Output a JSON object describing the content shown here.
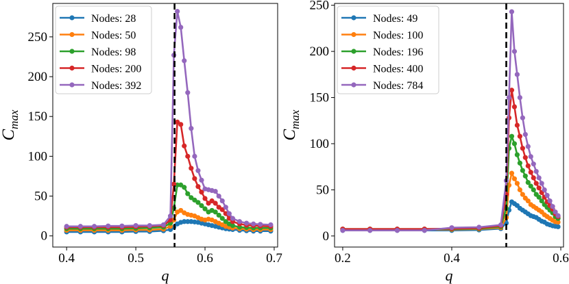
{
  "chart_data": [
    {
      "type": "line",
      "xlabel": "q",
      "ylabel_main": "C",
      "ylabel_sub": "max",
      "xlim": [
        0.38,
        0.705
      ],
      "ylim": [
        -14,
        292
      ],
      "xticks": [
        0.4,
        0.5,
        0.6,
        0.7
      ],
      "xtick_labels": [
        "0.4",
        "0.5",
        "0.6",
        "0.7"
      ],
      "yticks": [
        0,
        50,
        100,
        150,
        200,
        250
      ],
      "ytick_labels": [
        "0",
        "50",
        "100",
        "150",
        "200",
        "250"
      ],
      "critical_q": 0.556,
      "legend_position": "top-left",
      "grid": false,
      "series": [
        {
          "name": "Nodes: 28",
          "color": "#1f77b4",
          "x": [
            0.4,
            0.42,
            0.44,
            0.46,
            0.48,
            0.5,
            0.52,
            0.54,
            0.55,
            0.555,
            0.56,
            0.565,
            0.57,
            0.575,
            0.58,
            0.585,
            0.59,
            0.595,
            0.6,
            0.605,
            0.61,
            0.615,
            0.62,
            0.625,
            0.63,
            0.635,
            0.64,
            0.65,
            0.66,
            0.67,
            0.68,
            0.695
          ],
          "y": [
            5,
            5,
            5,
            5,
            5,
            5.5,
            5.5,
            6.5,
            8,
            11,
            15,
            17,
            18,
            18,
            18,
            17.5,
            17,
            16,
            15,
            14,
            13,
            12,
            11,
            10,
            9,
            8.5,
            8,
            7,
            6.5,
            6,
            6,
            6
          ]
        },
        {
          "name": "Nodes: 50",
          "color": "#ff7f0e",
          "x": [
            0.4,
            0.42,
            0.44,
            0.46,
            0.48,
            0.5,
            0.52,
            0.54,
            0.55,
            0.555,
            0.56,
            0.565,
            0.57,
            0.575,
            0.58,
            0.585,
            0.59,
            0.595,
            0.6,
            0.605,
            0.61,
            0.615,
            0.62,
            0.625,
            0.63,
            0.635,
            0.64,
            0.65,
            0.66,
            0.67,
            0.68,
            0.695
          ],
          "y": [
            7,
            7,
            7,
            7,
            7,
            7.5,
            7.5,
            8.5,
            12,
            20,
            30,
            32,
            29,
            27,
            26,
            25,
            23,
            21,
            20,
            21,
            20,
            18,
            16,
            14,
            12,
            11,
            10,
            9,
            8.5,
            8,
            8,
            8
          ]
        },
        {
          "name": "Nodes: 98",
          "color": "#2ca02c",
          "x": [
            0.4,
            0.42,
            0.44,
            0.46,
            0.48,
            0.5,
            0.52,
            0.54,
            0.55,
            0.555,
            0.56,
            0.565,
            0.57,
            0.575,
            0.58,
            0.585,
            0.59,
            0.595,
            0.6,
            0.605,
            0.61,
            0.615,
            0.62,
            0.625,
            0.63,
            0.635,
            0.64,
            0.65,
            0.66,
            0.67,
            0.68,
            0.695
          ],
          "y": [
            9,
            9,
            9,
            9,
            9,
            9.5,
            10,
            11,
            16,
            35,
            64,
            64,
            61,
            53,
            48,
            45,
            42,
            38,
            34,
            30,
            32,
            30,
            26,
            22,
            18,
            15,
            13,
            11,
            10.5,
            10,
            10,
            10
          ]
        },
        {
          "name": "Nodes: 200",
          "color": "#d62728",
          "x": [
            0.4,
            0.42,
            0.44,
            0.46,
            0.48,
            0.5,
            0.52,
            0.54,
            0.55,
            0.555,
            0.56,
            0.565,
            0.57,
            0.575,
            0.58,
            0.585,
            0.59,
            0.595,
            0.6,
            0.605,
            0.61,
            0.615,
            0.62,
            0.625,
            0.63,
            0.635,
            0.64,
            0.65,
            0.66,
            0.67,
            0.68,
            0.695
          ],
          "y": [
            11,
            11,
            11,
            11,
            11,
            11.5,
            12,
            13,
            20,
            65,
            143,
            140,
            113,
            100,
            85,
            72,
            62,
            55,
            47,
            41,
            44,
            41,
            36,
            33,
            28,
            22,
            18,
            15,
            13.5,
            13,
            12.5,
            12
          ]
        },
        {
          "name": "Nodes: 392",
          "color": "#9467bd",
          "x": [
            0.4,
            0.42,
            0.44,
            0.46,
            0.48,
            0.5,
            0.52,
            0.54,
            0.55,
            0.555,
            0.56,
            0.565,
            0.57,
            0.575,
            0.58,
            0.585,
            0.59,
            0.595,
            0.6,
            0.605,
            0.61,
            0.615,
            0.62,
            0.625,
            0.63,
            0.635,
            0.64,
            0.65,
            0.66,
            0.67,
            0.68,
            0.695
          ],
          "y": [
            12,
            12,
            12,
            12.5,
            12.5,
            13,
            13,
            14,
            25,
            227,
            282,
            262,
            220,
            180,
            135,
            100,
            82,
            70,
            59,
            58,
            57,
            56,
            50,
            44,
            36,
            28,
            22,
            18,
            16,
            15,
            14.5,
            14
          ]
        }
      ]
    },
    {
      "type": "line",
      "xlabel": "q",
      "ylabel_main": "C",
      "ylabel_sub": "max",
      "xlim": [
        0.185,
        0.605
      ],
      "ylim": [
        -12,
        252
      ],
      "xticks": [
        0.2,
        0.4,
        0.6
      ],
      "xtick_labels": [
        "0.2",
        "0.4",
        "0.6"
      ],
      "yticks": [
        0,
        50,
        100,
        150,
        200,
        250
      ],
      "ytick_labels": [
        "0",
        "50",
        "100",
        "150",
        "200",
        "250"
      ],
      "critical_q": 0.5,
      "legend_position": "top-left",
      "grid": false,
      "series": [
        {
          "name": "Nodes: 49",
          "color": "#1f77b4",
          "x": [
            0.2,
            0.25,
            0.3,
            0.35,
            0.4,
            0.45,
            0.49,
            0.5,
            0.505,
            0.51,
            0.515,
            0.52,
            0.525,
            0.53,
            0.535,
            0.54,
            0.545,
            0.55,
            0.555,
            0.56,
            0.565,
            0.57,
            0.575,
            0.58,
            0.585,
            0.59,
            0.595
          ],
          "y": [
            6,
            6,
            6,
            6,
            6,
            6.5,
            8,
            14,
            28,
            37,
            35,
            33,
            30,
            28,
            26,
            24,
            22,
            21,
            20,
            18,
            16,
            15,
            13,
            12,
            11,
            10.5,
            10
          ]
        },
        {
          "name": "Nodes: 100",
          "color": "#ff7f0e",
          "x": [
            0.2,
            0.25,
            0.3,
            0.35,
            0.4,
            0.45,
            0.49,
            0.5,
            0.505,
            0.51,
            0.515,
            0.52,
            0.525,
            0.53,
            0.535,
            0.54,
            0.545,
            0.55,
            0.555,
            0.56,
            0.565,
            0.57,
            0.575,
            0.58,
            0.585,
            0.59,
            0.595
          ],
          "y": [
            7,
            7,
            7,
            7,
            7,
            7.5,
            9,
            20,
            55,
            68,
            62,
            57,
            50,
            45,
            41,
            38,
            34,
            32,
            30,
            28,
            26,
            23,
            21,
            19,
            17,
            15.5,
            15
          ]
        },
        {
          "name": "Nodes: 196",
          "color": "#2ca02c",
          "x": [
            0.2,
            0.25,
            0.3,
            0.35,
            0.4,
            0.45,
            0.49,
            0.5,
            0.505,
            0.51,
            0.515,
            0.52,
            0.525,
            0.53,
            0.535,
            0.54,
            0.545,
            0.55,
            0.555,
            0.56,
            0.565,
            0.57,
            0.575,
            0.58,
            0.585,
            0.59,
            0.595
          ],
          "y": [
            7.5,
            7.5,
            7.5,
            7.5,
            7.5,
            8,
            10,
            30,
            95,
            108,
            100,
            88,
            79,
            71,
            65,
            58,
            54,
            50,
            45,
            42,
            38,
            34,
            31,
            28,
            25,
            21,
            19
          ]
        },
        {
          "name": "Nodes: 400",
          "color": "#d62728",
          "x": [
            0.2,
            0.25,
            0.3,
            0.35,
            0.4,
            0.45,
            0.49,
            0.5,
            0.505,
            0.51,
            0.515,
            0.52,
            0.525,
            0.53,
            0.535,
            0.54,
            0.545,
            0.55,
            0.555,
            0.56,
            0.565,
            0.57,
            0.575,
            0.58,
            0.585,
            0.59,
            0.595
          ],
          "y": [
            7.5,
            7.5,
            7.5,
            7.5,
            8,
            8.5,
            11,
            45,
            128,
            158,
            140,
            120,
            108,
            95,
            85,
            76,
            69,
            63,
            57,
            52,
            47,
            42,
            37,
            33,
            29,
            24,
            21
          ]
        },
        {
          "name": "Nodes: 784",
          "color": "#9467bd",
          "x": [
            0.2,
            0.25,
            0.3,
            0.35,
            0.4,
            0.45,
            0.49,
            0.5,
            0.505,
            0.51,
            0.515,
            0.52,
            0.525,
            0.53,
            0.535,
            0.54,
            0.545,
            0.55,
            0.555,
            0.56,
            0.565,
            0.57,
            0.575,
            0.58,
            0.585,
            0.59,
            0.595
          ],
          "y": [
            6,
            6,
            6,
            6,
            9,
            9.5,
            12,
            60,
            150,
            243,
            200,
            175,
            150,
            128,
            110,
            97,
            86,
            78,
            70,
            63,
            57,
            50,
            44,
            38,
            32,
            26,
            22
          ]
        }
      ]
    }
  ]
}
